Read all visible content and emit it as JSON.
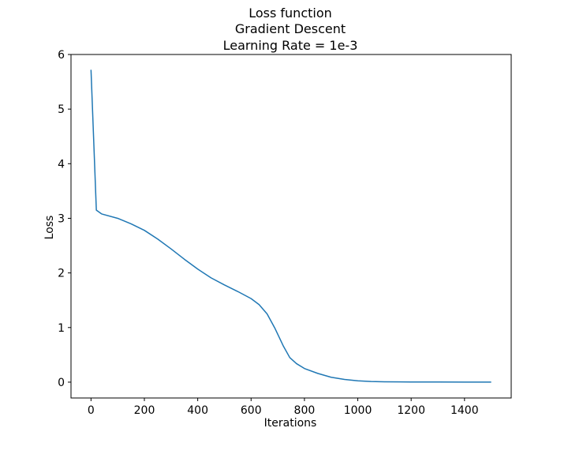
{
  "chart_data": {
    "type": "line",
    "title_lines": [
      "Loss function",
      "Gradient Descent",
      "Learning Rate = 1e-3"
    ],
    "xlabel": "Iterations",
    "ylabel": "Loss",
    "xlim": [
      -75,
      1575
    ],
    "ylim": [
      -0.29,
      6.0
    ],
    "xticks": [
      0,
      200,
      400,
      600,
      800,
      1000,
      1200,
      1400
    ],
    "yticks": [
      0,
      1,
      2,
      3,
      4,
      5,
      6
    ],
    "grid": false,
    "series": [
      {
        "name": "loss",
        "color": "#1f77b4",
        "x": [
          0,
          20,
          40,
          100,
          150,
          200,
          250,
          300,
          350,
          400,
          450,
          500,
          550,
          600,
          630,
          660,
          690,
          720,
          745,
          770,
          800,
          850,
          900,
          950,
          1000,
          1050,
          1100,
          1200,
          1300,
          1400,
          1500
        ],
        "y": [
          5.72,
          3.15,
          3.08,
          3.0,
          2.9,
          2.78,
          2.62,
          2.44,
          2.25,
          2.07,
          1.91,
          1.78,
          1.66,
          1.53,
          1.42,
          1.25,
          0.98,
          0.67,
          0.45,
          0.34,
          0.25,
          0.16,
          0.09,
          0.05,
          0.025,
          0.012,
          0.006,
          0.003,
          0.002,
          0.001,
          0.001
        ]
      }
    ]
  }
}
